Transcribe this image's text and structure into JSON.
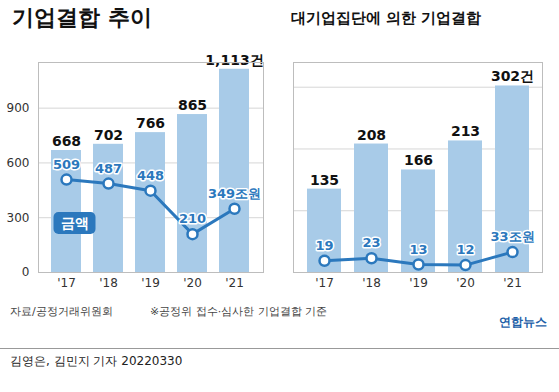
{
  "chart_data": [
    {
      "type": "bar",
      "title": "기업결합 추이",
      "categories": [
        "'17",
        "'18",
        "'19",
        "'20",
        "'21"
      ],
      "series": [
        {
          "type": "bar",
          "color": "#a8cbe8",
          "values": [
            668,
            702,
            766,
            865,
            1113
          ],
          "value_labels": [
            "668",
            "702",
            "766",
            "865",
            "1,113건"
          ]
        },
        {
          "name": "금액",
          "type": "line",
          "color": "#2b78bd",
          "marker": "circle",
          "line_style": "solid",
          "values": [
            509,
            487,
            448,
            210,
            349
          ],
          "value_labels": [
            "509",
            "487",
            "448",
            "210",
            "349조원"
          ]
        }
      ],
      "ylim": [
        0,
        1150
      ],
      "yticks": [
        0,
        300,
        600,
        900
      ],
      "grid": true,
      "data_labels": true
    },
    {
      "type": "bar",
      "title": "대기업집단에 의한 기업결합",
      "categories": [
        "'17",
        "'18",
        "'19",
        "'20",
        "'21"
      ],
      "series": [
        {
          "type": "bar",
          "color": "#a8cbe8",
          "values": [
            135,
            208,
            166,
            213,
            302
          ],
          "value_labels": [
            "135",
            "208",
            "166",
            "213",
            "302건"
          ]
        },
        {
          "type": "line",
          "color": "#2b78bd",
          "marker": "circle",
          "line_style": "solid",
          "values": [
            19,
            23,
            13,
            12,
            33
          ],
          "value_labels": [
            "19",
            "23",
            "13",
            "12",
            "33조원"
          ]
        }
      ],
      "ylim": [
        0,
        340
      ],
      "yticks": [
        0,
        100,
        200,
        300
      ],
      "grid": true,
      "data_labels": true,
      "tick_labels": "x"
    }
  ],
  "footer": {
    "source": "자료/공정거래위원회",
    "note": "※공정위 접수·심사한 기업결합 기준",
    "logo": "연합뉴스",
    "byline": "김영은, 김민지 기자 20220330"
  }
}
